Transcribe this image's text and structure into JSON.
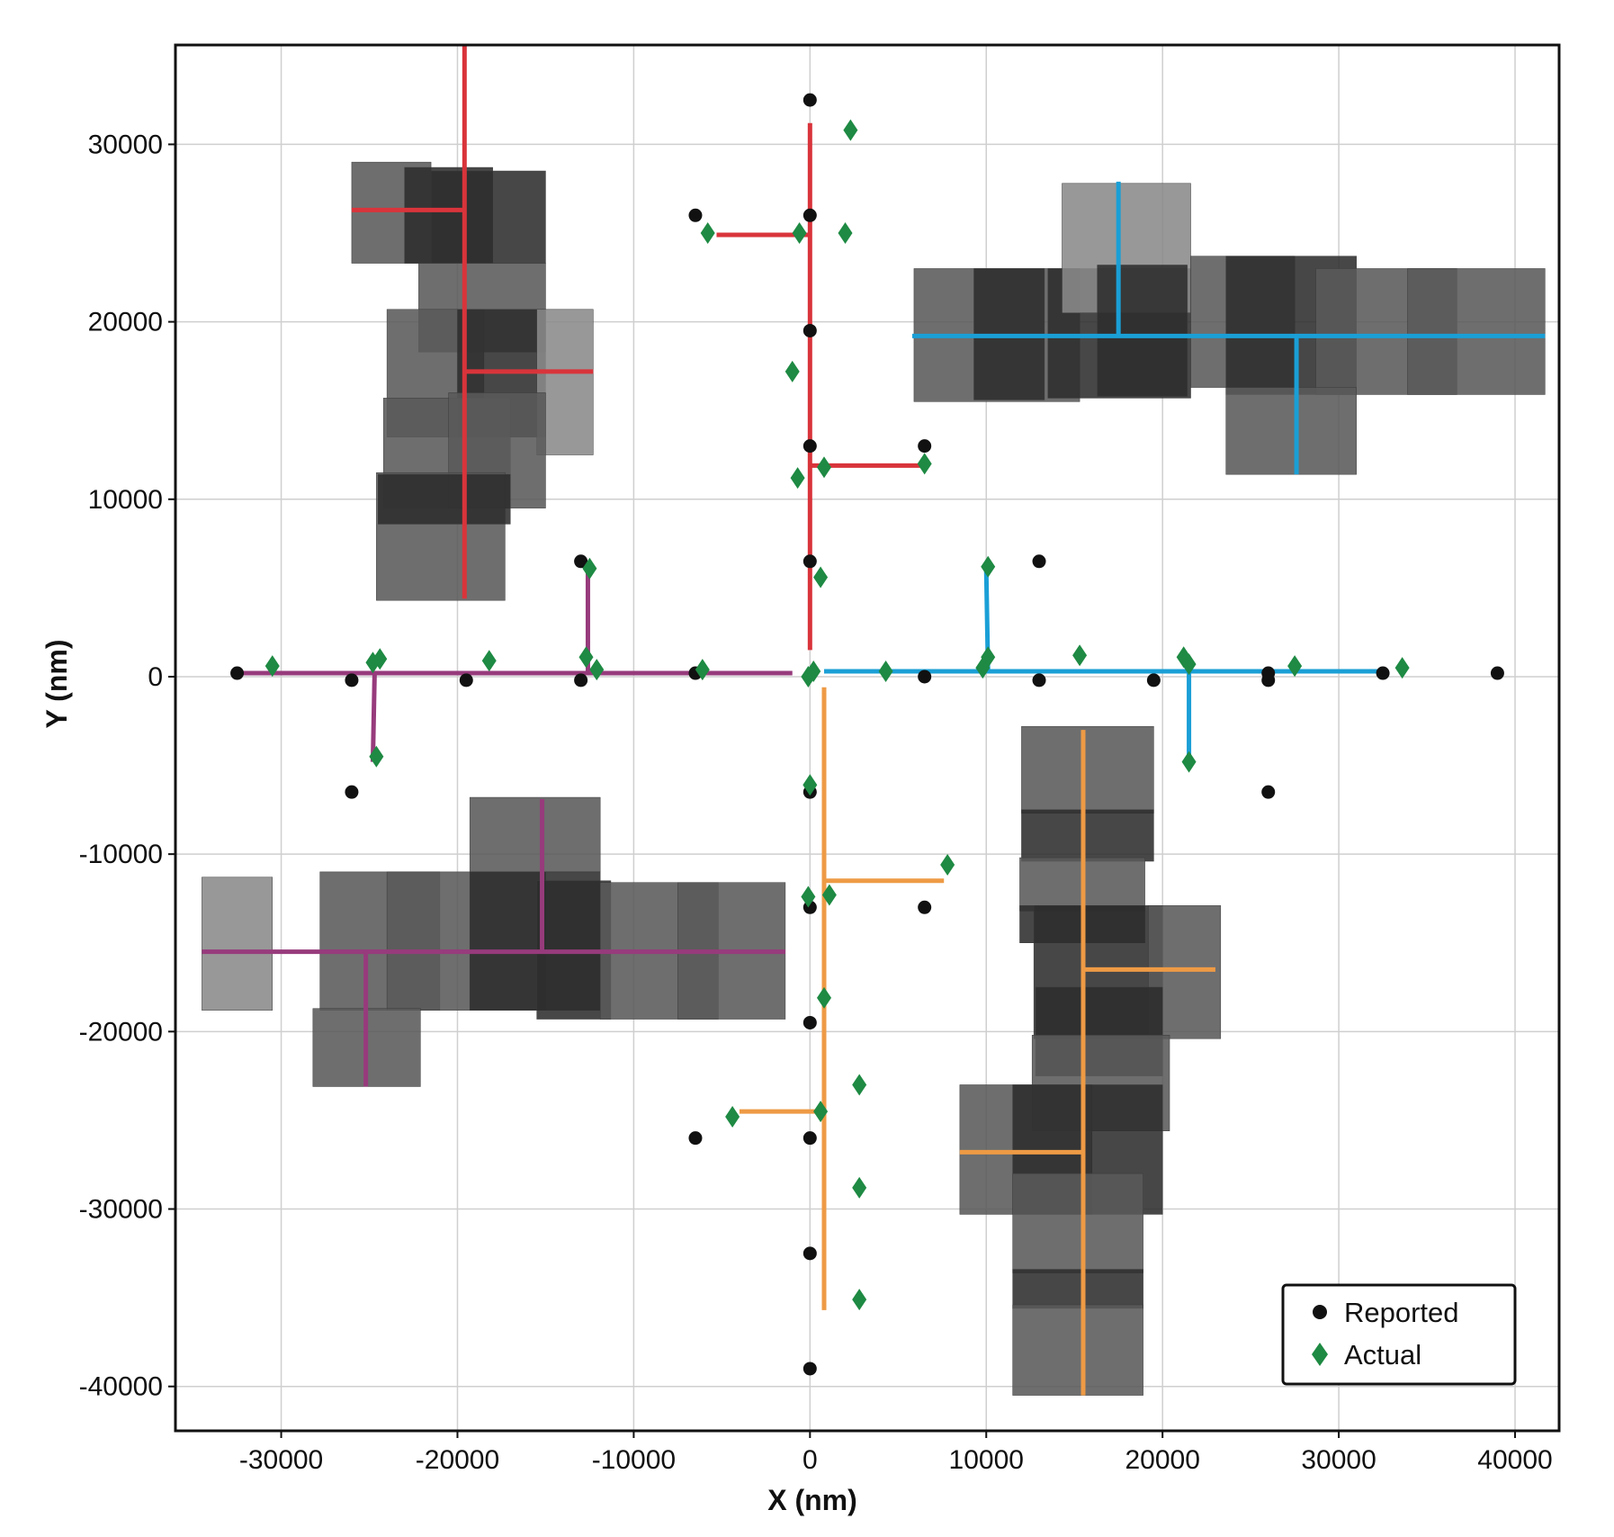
{
  "chart_data": {
    "type": "scatter",
    "xlabel": "X (nm)",
    "ylabel": "Y (nm)",
    "xlim": [
      -36000,
      42500
    ],
    "ylim": [
      -42500,
      35600
    ],
    "grid": true,
    "legend_position": "bottom-right",
    "x_ticks": [
      -30000,
      -20000,
      -10000,
      0,
      10000,
      20000,
      30000,
      40000
    ],
    "y_ticks": [
      30000,
      20000,
      10000,
      0,
      -10000,
      -20000,
      -30000,
      -40000
    ],
    "x_tick_labels": [
      "-30000",
      "-20000",
      "-10000",
      "0",
      "10000",
      "20000",
      "30000",
      "40000"
    ],
    "y_tick_labels": [
      "30000",
      "20000",
      "10000",
      "0",
      "-10000",
      "-20000",
      "-30000",
      "-40000"
    ],
    "colors": {
      "red": "#d9343b",
      "blue": "#1a9fd6",
      "purple": "#973b7c",
      "orange": "#ee9a45",
      "reported": "#111111",
      "actual": "#1e8a43",
      "tile_dark": "#2d2d2d",
      "tile_mid": "#5a5a5a",
      "tile_light": "#8a8a8a"
    },
    "series": [
      {
        "name": "Reported",
        "marker": "circle",
        "points": [
          [
            0,
            32500
          ],
          [
            -6500,
            26000
          ],
          [
            0,
            26000
          ],
          [
            0,
            19500
          ],
          [
            0,
            13000
          ],
          [
            6500,
            13000
          ],
          [
            -13000,
            6500
          ],
          [
            0,
            6500
          ],
          [
            13000,
            6500
          ],
          [
            -32500,
            200
          ],
          [
            -26000,
            -200
          ],
          [
            -19500,
            -200
          ],
          [
            -13000,
            -200
          ],
          [
            -6500,
            200
          ],
          [
            6500,
            0
          ],
          [
            13000,
            -200
          ],
          [
            19500,
            -200
          ],
          [
            26000,
            -200
          ],
          [
            26000,
            200
          ],
          [
            32500,
            200
          ],
          [
            39000,
            200
          ],
          [
            -26000,
            -6500
          ],
          [
            0,
            -6500
          ],
          [
            26000,
            -6500
          ],
          [
            0,
            -13000
          ],
          [
            6500,
            -13000
          ],
          [
            0,
            -19500
          ],
          [
            -6500,
            -26000
          ],
          [
            0,
            -26000
          ],
          [
            0,
            -32500
          ],
          [
            0,
            -39000
          ]
        ]
      },
      {
        "name": "Actual",
        "marker": "diamond",
        "points": [
          [
            2300,
            30800
          ],
          [
            -5800,
            25000
          ],
          [
            -600,
            25000
          ],
          [
            2000,
            25000
          ],
          [
            -1000,
            17200
          ],
          [
            -700,
            11200
          ],
          [
            800,
            11800
          ],
          [
            6500,
            12000
          ],
          [
            -12500,
            6100
          ],
          [
            600,
            5600
          ],
          [
            10100,
            6200
          ],
          [
            -30500,
            600
          ],
          [
            -24800,
            800
          ],
          [
            -24400,
            1000
          ],
          [
            -18200,
            900
          ],
          [
            -12700,
            1100
          ],
          [
            -12100,
            400
          ],
          [
            -6100,
            400
          ],
          [
            -100,
            0
          ],
          [
            200,
            300
          ],
          [
            4300,
            300
          ],
          [
            9800,
            500
          ],
          [
            10100,
            1100
          ],
          [
            15300,
            1200
          ],
          [
            21200,
            1100
          ],
          [
            21500,
            700
          ],
          [
            27500,
            600
          ],
          [
            33600,
            500
          ],
          [
            -24600,
            -4500
          ],
          [
            21500,
            -4800
          ],
          [
            0,
            -6100
          ],
          [
            -100,
            -12400
          ],
          [
            1100,
            -12300
          ],
          [
            7800,
            -10600
          ],
          [
            800,
            -18100
          ],
          [
            2800,
            -23000
          ],
          [
            -4400,
            -24800
          ],
          [
            600,
            -24500
          ],
          [
            2800,
            -28800
          ],
          [
            2800,
            -35100
          ]
        ]
      }
    ],
    "paths": [
      {
        "color": "red",
        "segments": [
          [
            [
              0,
              31200
            ],
            [
              0,
              1500
            ]
          ],
          [
            [
              -5300,
              24900
            ],
            [
              0,
              24900
            ]
          ],
          [
            [
              0,
              11900
            ],
            [
              6300,
              11900
            ]
          ],
          [
            [
              -19600,
              35600
            ],
            [
              -19600,
              4400
            ]
          ],
          [
            [
              -26000,
              26300
            ],
            [
              -19600,
              26300
            ]
          ],
          [
            [
              -19600,
              17200
            ],
            [
              -12300,
              17200
            ]
          ]
        ]
      },
      {
        "color": "blue",
        "segments": [
          [
            [
              800,
              300
            ],
            [
              32800,
              300
            ]
          ],
          [
            [
              10000,
              6000
            ],
            [
              10100,
              300
            ]
          ],
          [
            [
              21500,
              300
            ],
            [
              21500,
              -5000
            ]
          ],
          [
            [
              5800,
              19200
            ],
            [
              41700,
              19200
            ]
          ],
          [
            [
              17500,
              27900
            ],
            [
              17500,
              19200
            ]
          ],
          [
            [
              27600,
              19200
            ],
            [
              27600,
              11400
            ]
          ]
        ]
      },
      {
        "color": "purple",
        "segments": [
          [
            [
              -32500,
              200
            ],
            [
              -1000,
              200
            ]
          ],
          [
            [
              -12600,
              6000
            ],
            [
              -12600,
              200
            ]
          ],
          [
            [
              -24700,
              200
            ],
            [
              -24800,
              -4800
            ]
          ],
          [
            [
              -34500,
              -15500
            ],
            [
              -1400,
              -15500
            ]
          ],
          [
            [
              -15200,
              -6900
            ],
            [
              -15200,
              -15500
            ]
          ],
          [
            [
              -25200,
              -15500
            ],
            [
              -25200,
              -23100
            ]
          ]
        ]
      },
      {
        "color": "orange",
        "segments": [
          [
            [
              800,
              -600
            ],
            [
              800,
              -35700
            ]
          ],
          [
            [
              800,
              -11500
            ],
            [
              7600,
              -11500
            ]
          ],
          [
            [
              -4000,
              -24500
            ],
            [
              800,
              -24500
            ]
          ],
          [
            [
              15500,
              -3000
            ],
            [
              15500,
              -40500
            ]
          ],
          [
            [
              15500,
              -16500
            ],
            [
              23000,
              -16500
            ]
          ],
          [
            [
              8500,
              -26800
            ],
            [
              15500,
              -26800
            ]
          ]
        ]
      }
    ],
    "image_mosaics": [
      {
        "region": "top-left",
        "tiles": [
          [
            -26000,
            -21500,
            23300,
            29000,
            "tile_mid"
          ],
          [
            -23000,
            -18000,
            23300,
            28700,
            "tile_dark"
          ],
          [
            -21500,
            -15000,
            23300,
            28500,
            "tile_dark"
          ],
          [
            -22200,
            -15000,
            18300,
            23300,
            "tile_mid"
          ],
          [
            -24000,
            -18500,
            13500,
            20700,
            "tile_mid"
          ],
          [
            -20000,
            -15000,
            13500,
            20700,
            "tile_dark"
          ],
          [
            -15500,
            -12300,
            12500,
            20700,
            "tile_light"
          ],
          [
            -24200,
            -17000,
            9500,
            15700,
            "tile_mid"
          ],
          [
            -20500,
            -15000,
            9500,
            16000,
            "tile_mid"
          ],
          [
            -24600,
            -17300,
            4300,
            11500,
            "tile_mid"
          ],
          [
            -24500,
            -17000,
            8600,
            11400,
            "tile_dark"
          ]
        ]
      },
      {
        "region": "top-right",
        "tiles": [
          [
            5900,
            15300,
            15500,
            23000,
            "tile_mid"
          ],
          [
            9300,
            13300,
            15600,
            23000,
            "tile_dark"
          ],
          [
            13500,
            21600,
            15700,
            23000,
            "tile_dark"
          ],
          [
            14300,
            21600,
            20500,
            27800,
            "tile_light"
          ],
          [
            16300,
            21400,
            15800,
            23200,
            "tile_dark"
          ],
          [
            21600,
            27500,
            16300,
            23700,
            "tile_mid"
          ],
          [
            23600,
            31000,
            15900,
            23700,
            "tile_dark"
          ],
          [
            28700,
            36700,
            15900,
            23000,
            "tile_mid"
          ],
          [
            33900,
            41700,
            15900,
            23000,
            "tile_mid"
          ],
          [
            23600,
            31000,
            11400,
            16300,
            "tile_mid"
          ]
        ]
      },
      {
        "region": "bottom-left",
        "tiles": [
          [
            -34500,
            -30500,
            -18800,
            -11300,
            "tile_light"
          ],
          [
            -27800,
            -21000,
            -18800,
            -11000,
            "tile_mid"
          ],
          [
            -24000,
            -15000,
            -18800,
            -11000,
            "tile_mid"
          ],
          [
            -19300,
            -11900,
            -11000,
            -6800,
            "tile_mid"
          ],
          [
            -19300,
            -11900,
            -18800,
            -11000,
            "tile_dark"
          ],
          [
            -15500,
            -11300,
            -19300,
            -11500,
            "tile_dark"
          ],
          [
            -11900,
            -5200,
            -19300,
            -11600,
            "tile_mid"
          ],
          [
            -7500,
            -1400,
            -19300,
            -11600,
            "tile_mid"
          ],
          [
            -28200,
            -22100,
            -23100,
            -18700,
            "tile_mid"
          ]
        ]
      },
      {
        "region": "bottom-right",
        "tiles": [
          [
            12000,
            19500,
            -7700,
            -2800,
            "tile_mid"
          ],
          [
            12000,
            19500,
            -10400,
            -7500,
            "tile_dark"
          ],
          [
            11900,
            19000,
            -13200,
            -10200,
            "tile_mid"
          ],
          [
            11900,
            19000,
            -15000,
            -12900,
            "tile_dark"
          ],
          [
            12700,
            20000,
            -20400,
            -12900,
            "tile_dark"
          ],
          [
            19200,
            23300,
            -20400,
            -12900,
            "tile_mid"
          ],
          [
            12800,
            20000,
            -22500,
            -17500,
            "tile_dark"
          ],
          [
            12600,
            20400,
            -25600,
            -20200,
            "tile_mid"
          ],
          [
            8500,
            16000,
            -30300,
            -23000,
            "tile_mid"
          ],
          [
            11500,
            20000,
            -30300,
            -23000,
            "tile_dark"
          ],
          [
            11500,
            18900,
            -33600,
            -28000,
            "tile_mid"
          ],
          [
            11500,
            18900,
            -35600,
            -33400,
            "tile_dark"
          ],
          [
            11500,
            18900,
            -40500,
            -35400,
            "tile_mid"
          ]
        ]
      }
    ]
  }
}
